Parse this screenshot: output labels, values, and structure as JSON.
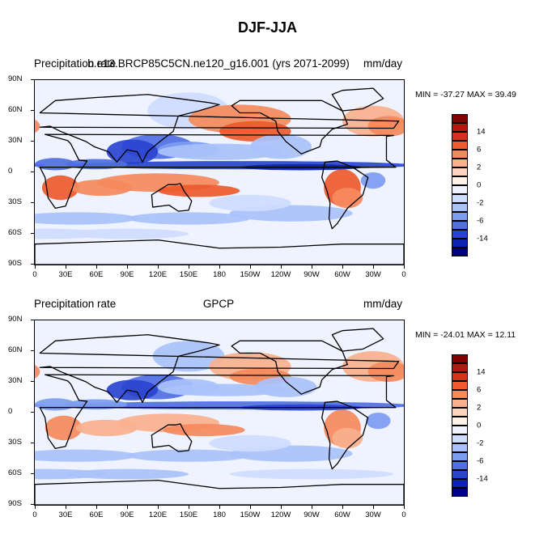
{
  "figure": {
    "title": "DJF-JJA"
  },
  "panels": [
    {
      "id": "top",
      "left_label": "Precipitation rate",
      "center_label": "b.e13.BRCP85C5CN.ne120_g16.001 (yrs 2071-2099)",
      "units": "mm/day",
      "stats": "MIN = -37.27  MAX =  39.49"
    },
    {
      "id": "bottom",
      "left_label": "Precipitation rate",
      "center_label": "GPCP",
      "units": "mm/day",
      "stats": "MIN = -24.01  MAX =  12.11"
    }
  ],
  "axes": {
    "y_ticks": [
      "90N",
      "60N",
      "30N",
      "0",
      "30S",
      "60S",
      "90S"
    ],
    "x_ticks": [
      "0",
      "30E",
      "60E",
      "90E",
      "120E",
      "150E",
      "180",
      "150W",
      "120W",
      "90W",
      "60W",
      "30W",
      "0"
    ]
  },
  "colorbar": {
    "labels": [
      "14",
      "6",
      "2",
      "0",
      "-2",
      "-6",
      "-14"
    ],
    "colors": [
      "#800000",
      "#b01a0e",
      "#d8301a",
      "#ee5a2e",
      "#f58a5c",
      "#f9b18e",
      "#fdd4bd",
      "#fff2e8",
      "#eef3ff",
      "#cfdcff",
      "#a9c2fb",
      "#7d9cf2",
      "#4f6fe3",
      "#2a44d0",
      "#0e22b4",
      "#000080"
    ]
  },
  "chart_data": {
    "type": "heatmap",
    "projection": "cylindrical equidistant",
    "lon_range": [
      0,
      360
    ],
    "lat_range": [
      -90,
      90
    ],
    "contour_levels_shown": [
      14,
      6,
      2,
      0,
      -2,
      -6,
      -14
    ],
    "panels": [
      {
        "name": "b.e13.BRCP85C5CN.ne120_g16.001 (yrs 2071-2099)",
        "min": -37.27,
        "max": 39.49,
        "units": "mm/day"
      },
      {
        "name": "GPCP",
        "min": -24.01,
        "max": 12.11,
        "units": "mm/day"
      }
    ]
  }
}
